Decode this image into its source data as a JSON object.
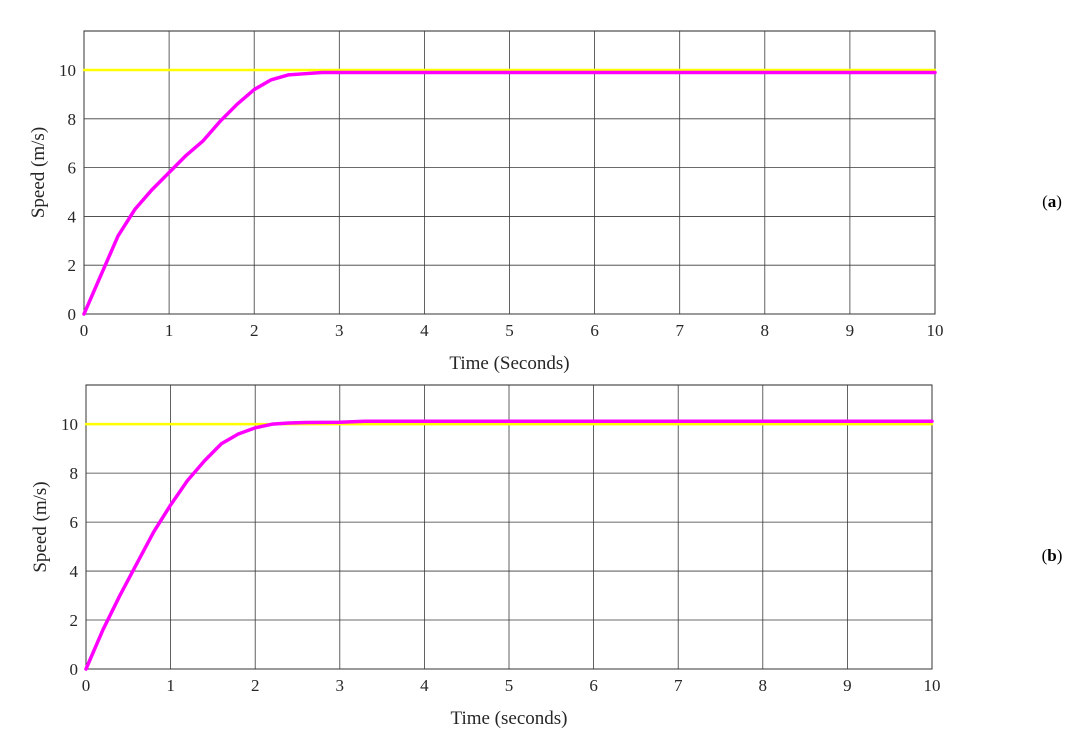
{
  "chart_data": [
    {
      "type": "line",
      "panel_label": "a",
      "xlabel": "Time (Seconds)",
      "ylabel": "Speed (m/s)",
      "xlim": [
        0,
        10
      ],
      "ylim": [
        0,
        11.6
      ],
      "xticks": [
        0,
        1,
        2,
        3,
        4,
        5,
        6,
        7,
        8,
        9,
        10
      ],
      "yticks": [
        0,
        2,
        4,
        6,
        8,
        10
      ],
      "grid": true,
      "series": [
        {
          "color": "#ffff00",
          "x": [
            0,
            10
          ],
          "y": [
            10,
            10
          ]
        },
        {
          "color": "#ff00ff",
          "x": [
            0,
            0.2,
            0.4,
            0.6,
            0.8,
            1.0,
            1.2,
            1.4,
            1.6,
            1.8,
            2.0,
            2.2,
            2.4,
            2.6,
            2.8,
            3.0,
            4,
            5,
            6,
            7,
            8,
            9,
            10
          ],
          "y": [
            0,
            1.6,
            3.2,
            4.3,
            5.1,
            5.8,
            6.5,
            7.1,
            7.9,
            8.6,
            9.2,
            9.6,
            9.8,
            9.85,
            9.9,
            9.9,
            9.9,
            9.9,
            9.9,
            9.9,
            9.9,
            9.9,
            9.9
          ]
        }
      ]
    },
    {
      "type": "line",
      "panel_label": "b",
      "xlabel": "Time (seconds)",
      "ylabel": "Speed (m/s)",
      "xlim": [
        0,
        10
      ],
      "ylim": [
        0,
        11.6
      ],
      "xticks": [
        0,
        1,
        2,
        3,
        4,
        5,
        6,
        7,
        8,
        9,
        10
      ],
      "yticks": [
        0,
        2,
        4,
        6,
        8,
        10
      ],
      "grid": true,
      "series": [
        {
          "color": "#ffff00",
          "x": [
            0,
            10
          ],
          "y": [
            10,
            10
          ]
        },
        {
          "color": "#ff00ff",
          "x": [
            0,
            0.2,
            0.4,
            0.6,
            0.8,
            1.0,
            1.2,
            1.4,
            1.6,
            1.8,
            2.0,
            2.2,
            2.4,
            2.6,
            3.0,
            3.3,
            4,
            5,
            6,
            7,
            8,
            9,
            10
          ],
          "y": [
            0,
            1.6,
            3.0,
            4.3,
            5.6,
            6.7,
            7.7,
            8.5,
            9.2,
            9.6,
            9.85,
            10.0,
            10.05,
            10.07,
            10.08,
            10.12,
            10.12,
            10.12,
            10.12,
            10.12,
            10.12,
            10.12,
            10.12
          ]
        }
      ]
    }
  ]
}
